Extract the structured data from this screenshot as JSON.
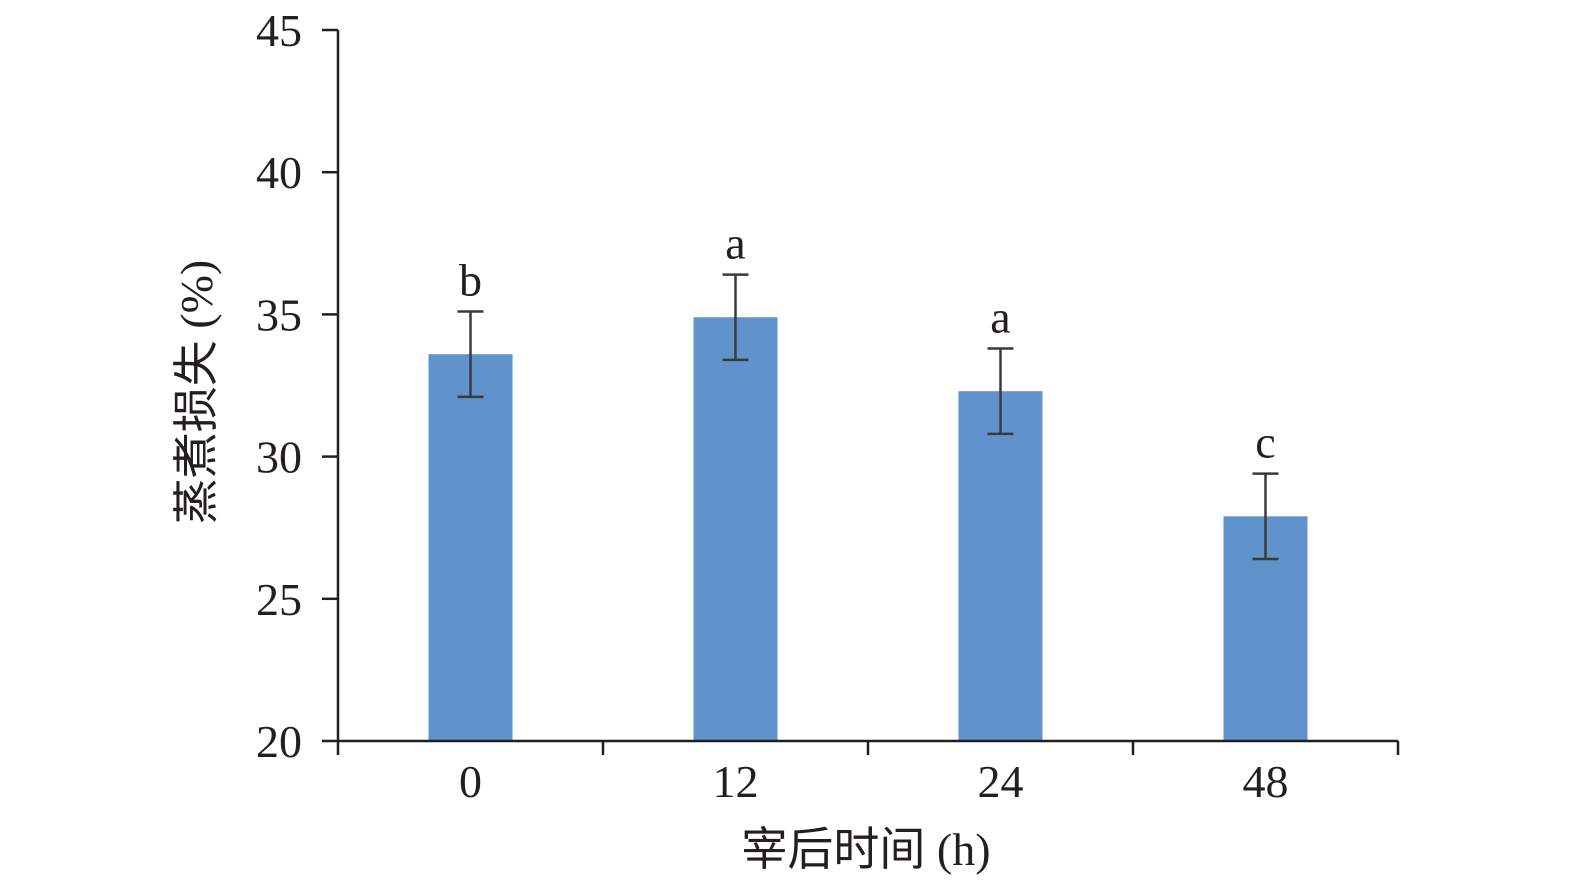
{
  "chart_data": {
    "type": "bar",
    "title": "",
    "xlabel": "宰后时间 (h)",
    "ylabel": "蒸煮损失 (%)",
    "categories": [
      "0",
      "12",
      "24",
      "48"
    ],
    "values": [
      33.6,
      34.9,
      32.3,
      27.9
    ],
    "errors": [
      1.5,
      1.5,
      1.5,
      1.5
    ],
    "significance_labels": [
      "b",
      "a",
      "a",
      "c"
    ],
    "ylim": [
      20,
      45
    ],
    "yticks": [
      "20",
      "25",
      "30",
      "35",
      "40",
      "45"
    ],
    "grid": false,
    "legend": "none",
    "colors": {
      "bar": "#6092cb",
      "axis": "#231f20",
      "error_bar": "#3a3a3a"
    }
  }
}
